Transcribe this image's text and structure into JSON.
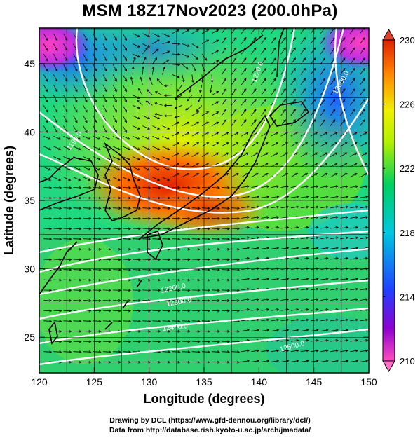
{
  "title": "MSM 18Z17Nov2023 (200.0hPa)",
  "map": {
    "lon_ticks": [
      "120",
      "125",
      "130",
      "135",
      "140",
      "145",
      "150"
    ],
    "lat_ticks": [
      "25",
      "30",
      "35",
      "40",
      "45"
    ],
    "lon_range": [
      120,
      150
    ],
    "lat_range": [
      22.4,
      47.6
    ],
    "xlabel": "Longitude (degrees)",
    "ylabel": "Latitude  (degrees)",
    "fill_quantity_units": "temperature K",
    "colorbar": {
      "labels": [
        "230",
        "226",
        "222",
        "218",
        "214",
        "210"
      ],
      "range": [
        210,
        230
      ],
      "colors": [
        "#ff50c0",
        "#6000d0",
        "#2040ff",
        "#00c8e0",
        "#00d060",
        "#b0f000",
        "#f0f000",
        "#ff8000",
        "#e02000"
      ]
    },
    "contour_labels": [
      "1190.0",
      "1220.0",
      "12200.0",
      "12300.0",
      "12400.0",
      "12500.0",
      "12600.0"
    ],
    "credits": {
      "line1": "Drawing by DCL (https://www.gfd-dennou.org/library/dcl/)",
      "line2": "Data from http://database.rish.kyoto-u.ac.jp/arch/jmadata/"
    }
  }
}
